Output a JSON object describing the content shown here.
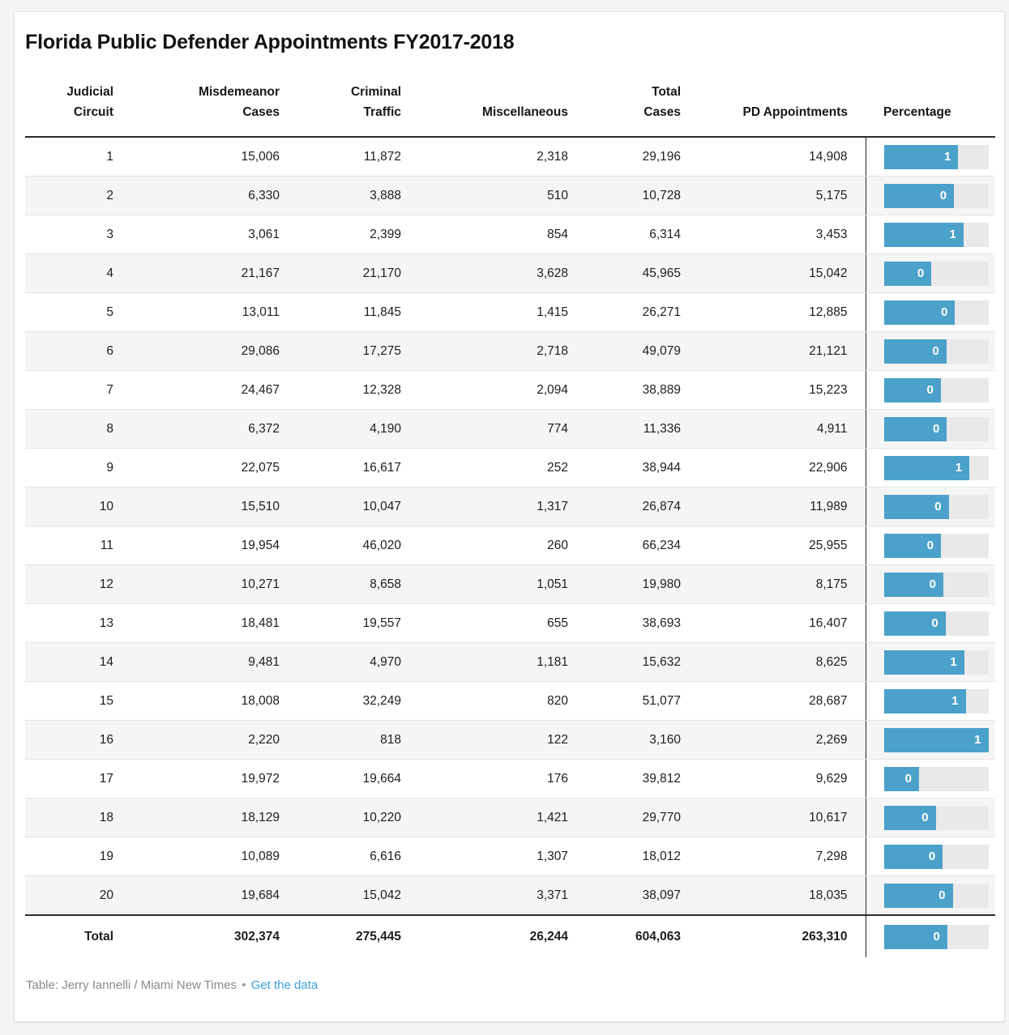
{
  "title": "Florida Public Defender Appointments FY2017-2018",
  "header": {
    "col1": "Judicial\nCircuit",
    "col2": "Misdemeanor\nCases",
    "col3": "Criminal\nTraffic",
    "col4": "Miscellaneous",
    "col5": "Total\nCases",
    "col6": "PD Appointments",
    "col7": "Percentage"
  },
  "footer": {
    "credit": "Table: Jerry Iannelli / Miami New Times",
    "bullet": "•",
    "link_label": "Get the data"
  },
  "colors": {
    "bar_fill": "#4ba1c9",
    "bar_track": "#e9e9e9",
    "link": "#3aa1d9",
    "row_stripe": "#f5f5f5",
    "dark_rule": "#2b2b2b"
  },
  "chart_data": {
    "type": "table",
    "title": "Florida Public Defender Appointments FY2017-2018",
    "columns": [
      "Judicial Circuit",
      "Misdemeanor Cases",
      "Criminal Traffic",
      "Miscellaneous",
      "Total Cases",
      "PD Appointments",
      "Percentage"
    ],
    "percentage_bar_scale_max": 0.718,
    "rows": [
      {
        "circuit": "1",
        "misdemeanor": "15,006",
        "criminal_traffic": "11,872",
        "miscellaneous": "2,318",
        "total_cases": "29,196",
        "pd_appointments": "14,908",
        "percentage": 0.511,
        "percentage_label": "1"
      },
      {
        "circuit": "2",
        "misdemeanor": "6,330",
        "criminal_traffic": "3,888",
        "miscellaneous": "510",
        "total_cases": "10,728",
        "pd_appointments": "5,175",
        "percentage": 0.482,
        "percentage_label": "0"
      },
      {
        "circuit": "3",
        "misdemeanor": "3,061",
        "criminal_traffic": "2,399",
        "miscellaneous": "854",
        "total_cases": "6,314",
        "pd_appointments": "3,453",
        "percentage": 0.547,
        "percentage_label": "1"
      },
      {
        "circuit": "4",
        "misdemeanor": "21,167",
        "criminal_traffic": "21,170",
        "miscellaneous": "3,628",
        "total_cases": "45,965",
        "pd_appointments": "15,042",
        "percentage": 0.327,
        "percentage_label": "0"
      },
      {
        "circuit": "5",
        "misdemeanor": "13,011",
        "criminal_traffic": "11,845",
        "miscellaneous": "1,415",
        "total_cases": "26,271",
        "pd_appointments": "12,885",
        "percentage": 0.49,
        "percentage_label": "0"
      },
      {
        "circuit": "6",
        "misdemeanor": "29,086",
        "criminal_traffic": "17,275",
        "miscellaneous": "2,718",
        "total_cases": "49,079",
        "pd_appointments": "21,121",
        "percentage": 0.43,
        "percentage_label": "0"
      },
      {
        "circuit": "7",
        "misdemeanor": "24,467",
        "criminal_traffic": "12,328",
        "miscellaneous": "2,094",
        "total_cases": "38,889",
        "pd_appointments": "15,223",
        "percentage": 0.391,
        "percentage_label": "0"
      },
      {
        "circuit": "8",
        "misdemeanor": "6,372",
        "criminal_traffic": "4,190",
        "miscellaneous": "774",
        "total_cases": "11,336",
        "pd_appointments": "4,911",
        "percentage": 0.433,
        "percentage_label": "0"
      },
      {
        "circuit": "9",
        "misdemeanor": "22,075",
        "criminal_traffic": "16,617",
        "miscellaneous": "252",
        "total_cases": "38,944",
        "pd_appointments": "22,906",
        "percentage": 0.588,
        "percentage_label": "1"
      },
      {
        "circuit": "10",
        "misdemeanor": "15,510",
        "criminal_traffic": "10,047",
        "miscellaneous": "1,317",
        "total_cases": "26,874",
        "pd_appointments": "11,989",
        "percentage": 0.446,
        "percentage_label": "0"
      },
      {
        "circuit": "11",
        "misdemeanor": "19,954",
        "criminal_traffic": "46,020",
        "miscellaneous": "260",
        "total_cases": "66,234",
        "pd_appointments": "25,955",
        "percentage": 0.392,
        "percentage_label": "0"
      },
      {
        "circuit": "12",
        "misdemeanor": "10,271",
        "criminal_traffic": "8,658",
        "miscellaneous": "1,051",
        "total_cases": "19,980",
        "pd_appointments": "8,175",
        "percentage": 0.409,
        "percentage_label": "0"
      },
      {
        "circuit": "13",
        "misdemeanor": "18,481",
        "criminal_traffic": "19,557",
        "miscellaneous": "655",
        "total_cases": "38,693",
        "pd_appointments": "16,407",
        "percentage": 0.424,
        "percentage_label": "0"
      },
      {
        "circuit": "14",
        "misdemeanor": "9,481",
        "criminal_traffic": "4,970",
        "miscellaneous": "1,181",
        "total_cases": "15,632",
        "pd_appointments": "8,625",
        "percentage": 0.552,
        "percentage_label": "1"
      },
      {
        "circuit": "15",
        "misdemeanor": "18,008",
        "criminal_traffic": "32,249",
        "miscellaneous": "820",
        "total_cases": "51,077",
        "pd_appointments": "28,687",
        "percentage": 0.562,
        "percentage_label": "1"
      },
      {
        "circuit": "16",
        "misdemeanor": "2,220",
        "criminal_traffic": "818",
        "miscellaneous": "122",
        "total_cases": "3,160",
        "pd_appointments": "2,269",
        "percentage": 0.718,
        "percentage_label": "1"
      },
      {
        "circuit": "17",
        "misdemeanor": "19,972",
        "criminal_traffic": "19,664",
        "miscellaneous": "176",
        "total_cases": "39,812",
        "pd_appointments": "9,629",
        "percentage": 0.242,
        "percentage_label": "0"
      },
      {
        "circuit": "18",
        "misdemeanor": "18,129",
        "criminal_traffic": "10,220",
        "miscellaneous": "1,421",
        "total_cases": "29,770",
        "pd_appointments": "10,617",
        "percentage": 0.357,
        "percentage_label": "0"
      },
      {
        "circuit": "19",
        "misdemeanor": "10,089",
        "criminal_traffic": "6,616",
        "miscellaneous": "1,307",
        "total_cases": "18,012",
        "pd_appointments": "7,298",
        "percentage": 0.405,
        "percentage_label": "0"
      },
      {
        "circuit": "20",
        "misdemeanor": "19,684",
        "criminal_traffic": "15,042",
        "miscellaneous": "3,371",
        "total_cases": "38,097",
        "pd_appointments": "18,035",
        "percentage": 0.473,
        "percentage_label": "0"
      }
    ],
    "total": {
      "circuit": "Total",
      "misdemeanor": "302,374",
      "criminal_traffic": "275,445",
      "miscellaneous": "26,244",
      "total_cases": "604,063",
      "pd_appointments": "263,310",
      "percentage": 0.436,
      "percentage_label": "0"
    }
  }
}
